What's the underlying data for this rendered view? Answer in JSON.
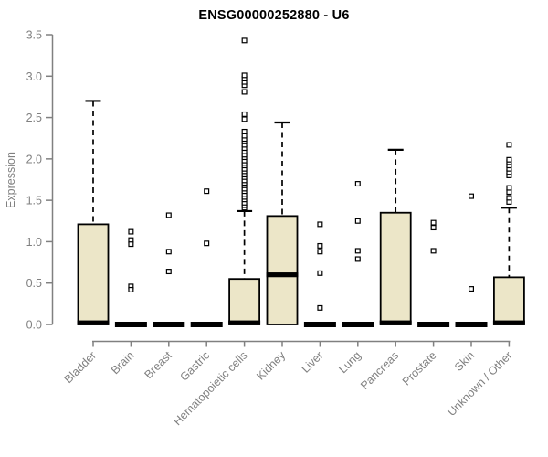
{
  "chart_data": {
    "type": "boxplot",
    "title": "ENSG00000252880 - U6",
    "xlabel": "",
    "ylabel": "Expression",
    "ylim": [
      0,
      3.5
    ],
    "yticks": [
      0.0,
      0.5,
      1.0,
      1.5,
      2.0,
      2.5,
      3.0,
      3.5
    ],
    "grid": false,
    "legend": "none",
    "categories": [
      "Bladder",
      "Brain",
      "Breast",
      "Gastric",
      "Hematopoietic cells",
      "Kidney",
      "Liver",
      "Lung",
      "Pancreas",
      "Prostate",
      "Skin",
      "Unknown / Other"
    ],
    "series": [
      {
        "category": "Bladder",
        "whisker_low": 0,
        "q1": 0,
        "median": 0.02,
        "q3": 1.21,
        "whisker_high": 2.7,
        "outliers": []
      },
      {
        "category": "Brain",
        "whisker_low": 0,
        "q1": 0,
        "median": 0,
        "q3": 0,
        "whisker_high": 0,
        "outliers": [
          1.12,
          1.02,
          0.97,
          0.46,
          0.42
        ]
      },
      {
        "category": "Breast",
        "whisker_low": 0,
        "q1": 0,
        "median": 0,
        "q3": 0,
        "whisker_high": 0,
        "outliers": [
          1.32,
          0.88,
          0.64
        ]
      },
      {
        "category": "Gastric",
        "whisker_low": 0,
        "q1": 0,
        "median": 0,
        "q3": 0,
        "whisker_high": 0,
        "outliers": [
          1.61,
          0.98
        ]
      },
      {
        "category": "Hematopoietic cells",
        "whisker_low": 0,
        "q1": 0,
        "median": 0.02,
        "q3": 0.55,
        "whisker_high": 1.37,
        "outliers": [
          1.41,
          1.44,
          1.47,
          1.51,
          1.54,
          1.57,
          1.61,
          1.64,
          1.68,
          1.71,
          1.74,
          1.78,
          1.81,
          1.85,
          1.88,
          1.92,
          1.95,
          1.98,
          2.02,
          2.05,
          2.09,
          2.13,
          2.17,
          2.21,
          2.24,
          2.28,
          2.33,
          2.48,
          2.54,
          2.81,
          2.89,
          2.93,
          2.97,
          3.01,
          3.43
        ]
      },
      {
        "category": "Kidney",
        "whisker_low": 0,
        "q1": 0,
        "median": 0.6,
        "q3": 1.31,
        "whisker_high": 2.44,
        "outliers": []
      },
      {
        "category": "Liver",
        "whisker_low": 0,
        "q1": 0,
        "median": 0,
        "q3": 0,
        "whisker_high": 0,
        "outliers": [
          1.21,
          0.95,
          0.88,
          0.62,
          0.2
        ]
      },
      {
        "category": "Lung",
        "whisker_low": 0,
        "q1": 0,
        "median": 0,
        "q3": 0,
        "whisker_high": 0,
        "outliers": [
          1.7,
          1.25,
          0.89,
          0.79
        ]
      },
      {
        "category": "Pancreas",
        "whisker_low": 0,
        "q1": 0,
        "median": 0.02,
        "q3": 1.35,
        "whisker_high": 2.11,
        "outliers": []
      },
      {
        "category": "Prostate",
        "whisker_low": 0,
        "q1": 0,
        "median": 0,
        "q3": 0,
        "whisker_high": 0,
        "outliers": [
          1.23,
          1.17,
          0.89
        ]
      },
      {
        "category": "Skin",
        "whisker_low": 0,
        "q1": 0,
        "median": 0,
        "q3": 0,
        "whisker_high": 0,
        "outliers": [
          1.55,
          0.43
        ]
      },
      {
        "category": "Unknown / Other",
        "whisker_low": 0,
        "q1": 0,
        "median": 0.02,
        "q3": 0.57,
        "whisker_high": 1.41,
        "outliers": [
          1.48,
          1.53,
          1.6,
          1.65,
          1.8,
          1.84,
          1.88,
          1.92,
          1.96,
          1.99,
          2.17
        ]
      }
    ],
    "colors": {
      "box_fill": "#ECE6C8",
      "box_border": "#000000",
      "median": "#000000",
      "whisker": "#000000",
      "outlier_stroke": "#000000",
      "outlier_fill": "#ffffff",
      "axis": "#808080",
      "tick_label": "#808080",
      "title": "#000000",
      "background": "#ffffff"
    }
  }
}
